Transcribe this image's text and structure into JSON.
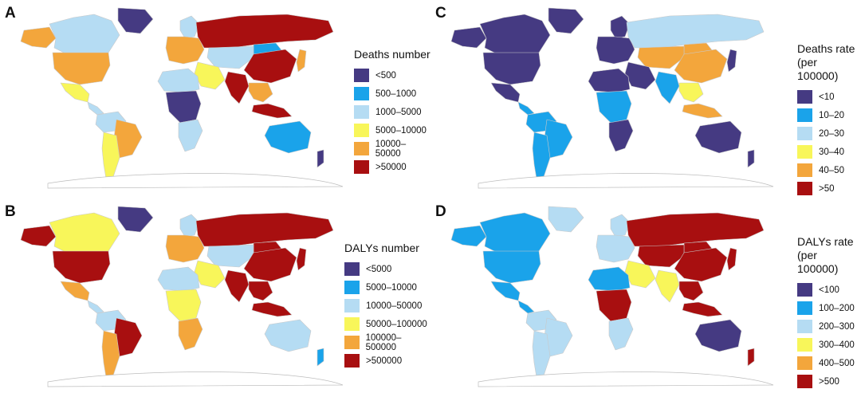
{
  "colors": {
    "c1": "#453a82",
    "c2": "#1aa3ea",
    "c3": "#b5dcf3",
    "c4": "#f8f65a",
    "c5": "#f3a63c",
    "c6": "#a80f10",
    "land_outline": "#c9c9c9",
    "water": "#ffffff"
  },
  "panels": [
    {
      "letter": "A",
      "legend": {
        "title": "Deaths  number",
        "items": [
          {
            "label": "<500",
            "color": "#453a82"
          },
          {
            "label": "500–1000",
            "color": "#1aa3ea"
          },
          {
            "label": "1000–5000",
            "color": "#b5dcf3"
          },
          {
            "label": "5000–10000",
            "color": "#f8f65a"
          },
          {
            "label": "10000–50000",
            "color": "#f3a63c"
          },
          {
            "label": ">50000",
            "color": "#a80f10"
          }
        ]
      },
      "regions": {
        "alaska": "#f3a63c",
        "canada": "#b5dcf3",
        "greenland": "#453a82",
        "usa": "#f3a63c",
        "mexico": "#f8f65a",
        "central_america": "#b5dcf3",
        "south_america_north": "#b5dcf3",
        "brazil": "#f3a63c",
        "south_america_south": "#f8f65a",
        "europe": "#f3a63c",
        "scandinavia": "#b5dcf3",
        "russia": "#a80f10",
        "middle_east": "#f8f65a",
        "central_asia": "#b5dcf3",
        "africa_north": "#b5dcf3",
        "africa_central": "#453a82",
        "africa_south": "#b5dcf3",
        "india": "#a80f10",
        "china": "#a80f10",
        "mongolia": "#1aa3ea",
        "southeast_asia": "#f3a63c",
        "indonesia": "#a80f10",
        "japan": "#f3a63c",
        "australia": "#1aa3ea",
        "new_zealand": "#453a82"
      }
    },
    {
      "letter": "C",
      "legend": {
        "title": "Deaths rate\n(per 100000)",
        "items": [
          {
            "label": "<10",
            "color": "#453a82"
          },
          {
            "label": "10–20",
            "color": "#1aa3ea"
          },
          {
            "label": "20–30",
            "color": "#b5dcf3"
          },
          {
            "label": "30–40",
            "color": "#f8f65a"
          },
          {
            "label": "40–50",
            "color": "#f3a63c"
          },
          {
            "label": ">50",
            "color": "#a80f10"
          }
        ]
      },
      "regions": {
        "alaska": "#453a82",
        "canada": "#453a82",
        "greenland": "#453a82",
        "usa": "#453a82",
        "mexico": "#453a82",
        "central_america": "#1aa3ea",
        "south_america_north": "#1aa3ea",
        "brazil": "#1aa3ea",
        "south_america_south": "#1aa3ea",
        "europe": "#453a82",
        "scandinavia": "#453a82",
        "russia": "#b5dcf3",
        "middle_east": "#453a82",
        "central_asia": "#f3a63c",
        "africa_north": "#453a82",
        "africa_central": "#1aa3ea",
        "africa_south": "#453a82",
        "india": "#1aa3ea",
        "china": "#f3a63c",
        "mongolia": "#f3a63c",
        "southeast_asia": "#f8f65a",
        "indonesia": "#f3a63c",
        "japan": "#453a82",
        "australia": "#453a82",
        "new_zealand": "#453a82"
      }
    },
    {
      "letter": "B",
      "legend": {
        "title": "DALYs number",
        "items": [
          {
            "label": "<5000",
            "color": "#453a82"
          },
          {
            "label": "5000–10000",
            "color": "#1aa3ea"
          },
          {
            "label": "10000–50000",
            "color": "#b5dcf3"
          },
          {
            "label": "50000–100000",
            "color": "#f8f65a"
          },
          {
            "label": "100000–500000",
            "color": "#f3a63c"
          },
          {
            "label": ">500000",
            "color": "#a80f10"
          }
        ]
      },
      "regions": {
        "alaska": "#a80f10",
        "canada": "#f8f65a",
        "greenland": "#453a82",
        "usa": "#a80f10",
        "mexico": "#f3a63c",
        "central_america": "#b5dcf3",
        "south_america_north": "#b5dcf3",
        "brazil": "#a80f10",
        "south_america_south": "#f3a63c",
        "europe": "#f3a63c",
        "scandinavia": "#b5dcf3",
        "russia": "#a80f10",
        "middle_east": "#f8f65a",
        "central_asia": "#b5dcf3",
        "africa_north": "#b5dcf3",
        "africa_central": "#f8f65a",
        "africa_south": "#f3a63c",
        "india": "#a80f10",
        "china": "#a80f10",
        "mongolia": "#a80f10",
        "southeast_asia": "#a80f10",
        "indonesia": "#a80f10",
        "japan": "#a80f10",
        "australia": "#b5dcf3",
        "new_zealand": "#1aa3ea"
      }
    },
    {
      "letter": "D",
      "legend": {
        "title": "DALYs rate\n(per 100000)",
        "items": [
          {
            "label": "<100",
            "color": "#453a82"
          },
          {
            "label": "100–200",
            "color": "#1aa3ea"
          },
          {
            "label": "200–300",
            "color": "#b5dcf3"
          },
          {
            "label": "300–400",
            "color": "#f8f65a"
          },
          {
            "label": "400–500",
            "color": "#f3a63c"
          },
          {
            "label": ">500",
            "color": "#a80f10"
          }
        ]
      },
      "regions": {
        "alaska": "#1aa3ea",
        "canada": "#1aa3ea",
        "greenland": "#b5dcf3",
        "usa": "#1aa3ea",
        "mexico": "#1aa3ea",
        "central_america": "#1aa3ea",
        "south_america_north": "#b5dcf3",
        "brazil": "#b5dcf3",
        "south_america_south": "#b5dcf3",
        "europe": "#b5dcf3",
        "scandinavia": "#b5dcf3",
        "russia": "#a80f10",
        "middle_east": "#f8f65a",
        "central_asia": "#a80f10",
        "africa_north": "#1aa3ea",
        "africa_central": "#a80f10",
        "africa_south": "#b5dcf3",
        "india": "#f8f65a",
        "china": "#a80f10",
        "mongolia": "#a80f10",
        "southeast_asia": "#a80f10",
        "indonesia": "#a80f10",
        "japan": "#a80f10",
        "australia": "#453a82",
        "new_zealand": "#a80f10"
      }
    }
  ]
}
